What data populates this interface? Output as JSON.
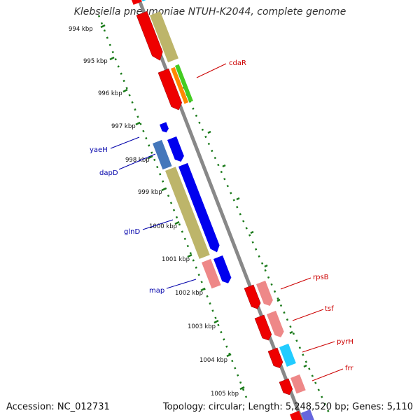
{
  "title": "Klebsiella pneumoniae NTUH-K2044, complete genome",
  "accession_text": "Accession: NC_012731",
  "meta_text": "Topology: circular; Length: 5,248,520 bp; Genes: 5,110",
  "ticks": [
    "994 kbp",
    "995 kbp",
    "996 kbp",
    "997 kbp",
    "998 kbp",
    "999 kbp",
    "1000 kbp",
    "1001 kbp",
    "1002 kbp",
    "1003 kbp",
    "1004 kbp",
    "1005 kbp"
  ],
  "labels": {
    "cdaR": "cdaR",
    "yaeH": "yaeH",
    "dapD": "dapD",
    "glnD": "glnD",
    "map": "map",
    "rpsB": "rpsB",
    "tsf": "tsf",
    "pyrH": "pyrH",
    "frr": "frr"
  },
  "colors": {
    "label_red": "#cc0000",
    "label_blue": "#0000aa",
    "backbone": "#888888",
    "gc_dots": "#1a7a1a"
  }
}
